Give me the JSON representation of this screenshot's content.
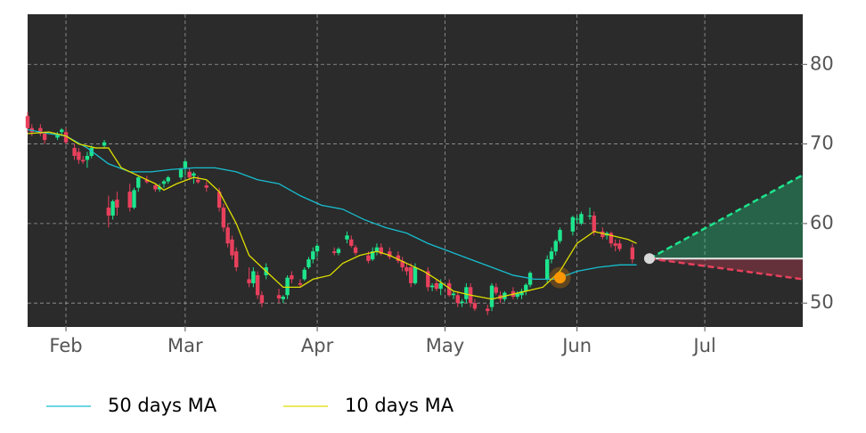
{
  "chart_data": {
    "type": "candlestick",
    "xlim": [
      -9,
      173
    ],
    "xticks": [
      {
        "value": 0,
        "label": "Feb"
      },
      {
        "value": 28,
        "label": "Mar"
      },
      {
        "value": 59,
        "label": "Apr"
      },
      {
        "value": 89,
        "label": "May"
      },
      {
        "value": 120,
        "label": "Jun"
      },
      {
        "value": 150,
        "label": "Jul"
      }
    ],
    "ylim": [
      47,
      86.3
    ],
    "yticks": [
      50,
      60,
      70,
      80
    ],
    "grid": true,
    "up_color": "#1de58d",
    "down_color": "#e8405c",
    "x": [
      -9,
      -8,
      -6,
      -5,
      -2,
      -1,
      0,
      2,
      3,
      4,
      5,
      6,
      9,
      10,
      11,
      12,
      15,
      16,
      17,
      19,
      21,
      22,
      23,
      24,
      27,
      28,
      29,
      30,
      31,
      33,
      36,
      37,
      38,
      39,
      40,
      43,
      44,
      45,
      46,
      47,
      50,
      51,
      52,
      53,
      55,
      56,
      57,
      58,
      59,
      63,
      64,
      66,
      67,
      68,
      71,
      72,
      73,
      74,
      76,
      78,
      79,
      80,
      81,
      82,
      85,
      86,
      87,
      88,
      90,
      91,
      92,
      93,
      94,
      95,
      96,
      99,
      100,
      101,
      102,
      103,
      105,
      106,
      107,
      108,
      109,
      113,
      114,
      115,
      116,
      119,
      120,
      121,
      123,
      124,
      126,
      127,
      128,
      129,
      130,
      133
    ],
    "open": [
      73.5,
      72,
      72,
      71.3,
      70.8,
      71.5,
      71.5,
      69.5,
      69,
      68,
      68,
      68.5,
      69.8,
      62,
      61,
      63,
      64,
      62,
      64.5,
      65.5,
      64.8,
      64.3,
      65,
      65.3,
      65.8,
      67,
      66.5,
      66,
      65.5,
      64.8,
      64,
      62,
      59.5,
      58,
      56.5,
      53,
      52.5,
      53.5,
      51,
      53.5,
      51,
      50.5,
      51,
      53.5,
      52.5,
      53,
      54.5,
      55.5,
      56.5,
      56.5,
      56.3,
      58,
      58,
      57,
      56,
      55.5,
      56.5,
      57,
      56.5,
      56,
      55.3,
      54.5,
      54.5,
      52.5,
      54,
      52,
      52.5,
      51.8,
      52.5,
      51,
      51,
      50,
      50.5,
      52,
      50,
      49.3,
      49.5,
      52,
      51,
      50.5,
      51.5,
      50.8,
      51,
      51.5,
      52.3,
      53,
      55.5,
      56.5,
      57.8,
      59,
      60.5,
      60,
      61,
      61,
      59,
      58.5,
      58.8,
      57.5,
      57.5,
      57
    ],
    "high": [
      74,
      72.5,
      72.5,
      71.6,
      71.5,
      72,
      72,
      70,
      69.5,
      68.5,
      69,
      69.8,
      70.5,
      63.5,
      63,
      64,
      65,
      64.5,
      66,
      66,
      65,
      65,
      65.5,
      66,
      67,
      68,
      67,
      66.5,
      66,
      65.3,
      64.5,
      62.5,
      60,
      58.5,
      57,
      54.5,
      54.5,
      54,
      51.5,
      55,
      51.8,
      51,
      53.5,
      54,
      53,
      54.5,
      55.8,
      57,
      57.5,
      57,
      57,
      59,
      58.5,
      57.3,
      56.5,
      57,
      57.5,
      57.5,
      57,
      56.5,
      55.8,
      55,
      55,
      55,
      54.5,
      52.5,
      53,
      53,
      53,
      51.5,
      51.5,
      50.5,
      52.5,
      52.5,
      50.5,
      49.8,
      52.5,
      52.5,
      51.5,
      51.5,
      52,
      51.5,
      51.8,
      52.5,
      54,
      56,
      57,
      58,
      59.5,
      61,
      61,
      61.5,
      62,
      61.5,
      59.5,
      59,
      59,
      58,
      58,
      57.5
    ],
    "low": [
      71.5,
      71,
      71,
      70,
      70.5,
      71,
      70,
      68,
      67.5,
      67.5,
      67,
      68.2,
      69.5,
      59.5,
      60.5,
      61,
      61.5,
      61.8,
      64,
      65,
      64,
      64,
      64.5,
      65,
      65.5,
      66,
      65.5,
      65,
      65,
      64,
      61.5,
      59,
      57,
      55.5,
      54,
      52,
      52,
      50.5,
      49.5,
      53,
      50,
      50,
      50.5,
      52.5,
      52,
      52.8,
      54.3,
      55,
      55.8,
      56,
      56,
      57.5,
      57,
      56,
      55,
      55.3,
      56,
      56,
      55.5,
      55,
      54,
      53.5,
      52,
      52.3,
      51.5,
      51.5,
      51.5,
      51,
      50.8,
      50.5,
      49.5,
      49.5,
      50,
      49.5,
      49,
      48.5,
      49,
      51,
      50,
      50.2,
      50.5,
      50.5,
      50.5,
      51,
      52,
      52.5,
      55,
      56,
      57.5,
      58.5,
      60,
      59.8,
      60.5,
      58.5,
      58,
      58,
      57,
      56.5,
      56.5,
      55
    ],
    "close": [
      72,
      71.5,
      71.3,
      70.5,
      71.2,
      71.8,
      70.2,
      68.5,
      68,
      67.8,
      68.5,
      69.5,
      70.2,
      61,
      62.8,
      62,
      62,
      64.2,
      65.8,
      65.2,
      64.3,
      64.6,
      65.3,
      65.8,
      66.8,
      67.8,
      65.8,
      66.3,
      65.2,
      64.5,
      62,
      59.5,
      57.5,
      56,
      54.5,
      52.5,
      54,
      51,
      50,
      54.5,
      50.6,
      50.8,
      53.2,
      53,
      52.3,
      54.2,
      55.5,
      56.5,
      57.2,
      56.3,
      56.8,
      58.5,
      57.2,
      56.3,
      55.3,
      56.5,
      57,
      56.2,
      55.8,
      55.3,
      54.5,
      54,
      52.5,
      54.5,
      52,
      52.2,
      51.8,
      52.5,
      51,
      51.2,
      50,
      50.2,
      52,
      50,
      49.3,
      49,
      52.2,
      51.3,
      50.5,
      51.3,
      50.8,
      51.2,
      51.5,
      52.3,
      53.8,
      55.5,
      56.5,
      57.8,
      59.2,
      60.8,
      60.6,
      61.2,
      61,
      59,
      58.3,
      58.8,
      57.5,
      57.2,
      56.8,
      55.5
    ],
    "series": [
      {
        "name": "50 days MA",
        "color": "#17becf",
        "x": [
          -9,
          -4,
          0,
          5,
          10,
          15,
          20,
          25,
          30,
          35,
          40,
          45,
          50,
          55,
          60,
          65,
          70,
          75,
          80,
          85,
          90,
          95,
          100,
          105,
          110,
          115,
          120,
          125,
          130,
          134
        ],
        "values": [
          71.8,
          71.3,
          71,
          69.5,
          67.5,
          66.5,
          66.5,
          66.8,
          67,
          67,
          66.5,
          65.5,
          65,
          63.5,
          62.3,
          61.8,
          60.5,
          59.5,
          58.8,
          57.5,
          56.5,
          55.5,
          54.5,
          53.5,
          53,
          53,
          54,
          54.5,
          54.8,
          54.8
        ]
      },
      {
        "name": "10 days MA",
        "color": "#dede00",
        "x": [
          -9,
          -4,
          0,
          3,
          7,
          10,
          13,
          17,
          21,
          23,
          26,
          30,
          33,
          36,
          40,
          43,
          47,
          51,
          55,
          58,
          62,
          65,
          69,
          73,
          76,
          80,
          84,
          87,
          91,
          95,
          100,
          104,
          108,
          112,
          116,
          120,
          124,
          128,
          132,
          134
        ],
        "values": [
          71.3,
          71.5,
          71,
          70,
          69.5,
          69.5,
          67,
          66,
          65,
          64.2,
          65,
          65.8,
          65.5,
          64,
          60,
          56,
          54,
          52,
          52,
          53,
          53.5,
          55,
          56,
          56.5,
          56,
          55,
          54,
          53,
          51.5,
          51,
          50.5,
          51,
          51.5,
          52,
          54,
          57.5,
          59,
          58.5,
          58,
          57.5
        ]
      }
    ],
    "signal": {
      "x": 116,
      "y": 53.2,
      "color": "#ff9800"
    },
    "forecast": {
      "x0": 137,
      "x1": 173,
      "start": 55.6,
      "upper": 66.1,
      "lower": 53.0,
      "upper_color": "#1de58d",
      "lower_color": "#e8405c"
    }
  }
}
